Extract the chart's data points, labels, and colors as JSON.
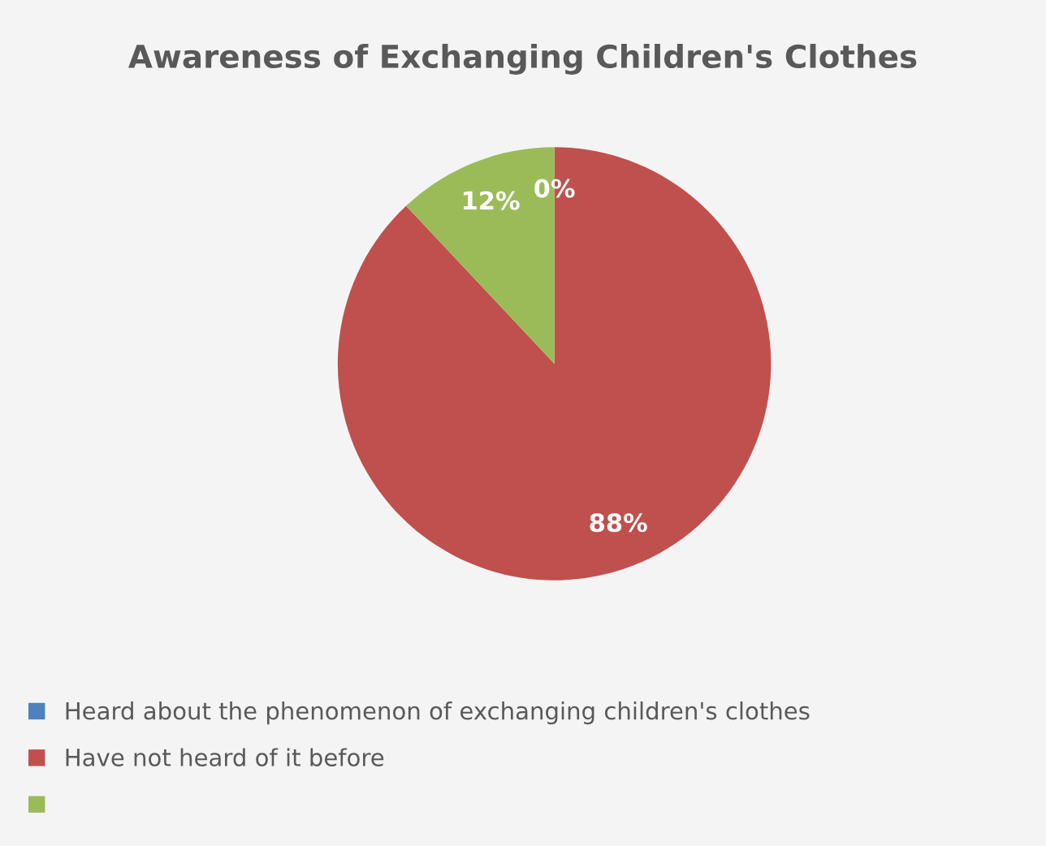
{
  "chart_data": {
    "type": "pie",
    "title": "Awareness of Exchanging Children's Clothes",
    "categories": [
      "Heard about the phenomenon of exchanging children's clothes",
      "Have not heard of it before",
      null
    ],
    "values": [
      0,
      88,
      12
    ],
    "value_labels": [
      "0%",
      "88%",
      "12%"
    ],
    "colors": [
      "#4f81bd",
      "#c0504d",
      "#9bbb59"
    ],
    "legend": "bottom"
  }
}
